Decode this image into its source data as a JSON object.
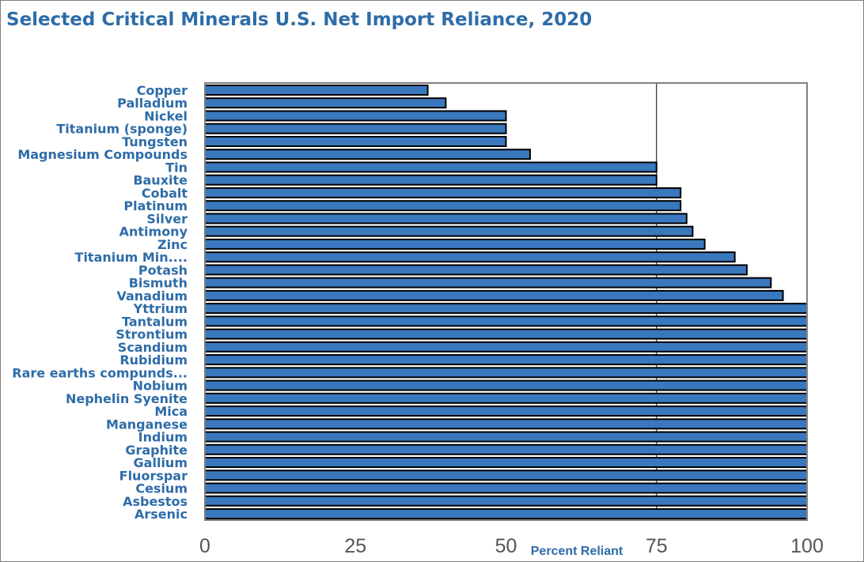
{
  "colors": {
    "bar_fill": "#3a78be",
    "bar_stroke": "#000000",
    "title": "#2e6ca8",
    "category_label": "#2e6ca8",
    "tick_label": "#555555",
    "plot_border": "#7f7f7f"
  },
  "chart_data": {
    "type": "bar",
    "orientation": "horizontal",
    "title": "Selected Critical Minerals U.S. Net Import Reliance, 2020",
    "xlabel": "Percent Reliant",
    "ylabel": "",
    "xlim": [
      0,
      100
    ],
    "xticks": [
      0,
      25,
      50,
      75,
      100
    ],
    "grid": "vertical gridline at 75",
    "legend": "none",
    "categories": [
      "Copper",
      "Palladium",
      "Nickel",
      "Titanium (sponge)",
      "Tungsten",
      "Magnesium Compounds",
      "Tin",
      "Bauxite",
      "Cobalt",
      "Platinum",
      "Silver",
      "Antimony",
      "Zinc",
      "Titanium Min....",
      "Potash",
      "Bismuth",
      "Vanadium",
      "Yttrium",
      "Tantalum",
      "Strontium",
      "Scandium",
      "Rubidium",
      "Rare earths compunds...",
      "Nobium",
      "Nephelin Syenite",
      "Mica",
      "Manganese",
      "Indium",
      "Graphite",
      "Gallium",
      "Fluorspar",
      "Cesium",
      "Asbestos",
      "Arsenic"
    ],
    "values": [
      37,
      40,
      50,
      50,
      50,
      54,
      75,
      75,
      79,
      79,
      80,
      81,
      83,
      88,
      90,
      94,
      96,
      100,
      100,
      100,
      100,
      100,
      100,
      100,
      100,
      100,
      100,
      100,
      100,
      100,
      100,
      100,
      100,
      100
    ]
  }
}
